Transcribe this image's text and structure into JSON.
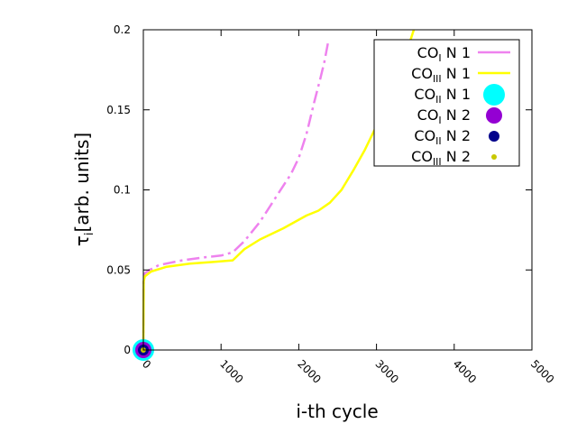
{
  "chart_data": {
    "type": "line",
    "title": "",
    "xlabel": "i-th cycle",
    "ylabel": {
      "main": "τ",
      "sub": "i",
      "rest": "[arb. units]"
    },
    "xlim": [
      0,
      5000
    ],
    "ylim": [
      0,
      0.2
    ],
    "x_ticks": [
      0,
      1000,
      2000,
      3000,
      4000,
      5000
    ],
    "x_tick_labels": [
      "0",
      "1000",
      "2000",
      "3000",
      "4000",
      "5000"
    ],
    "y_ticks": [
      0,
      0.05,
      0.1,
      0.15,
      0.2
    ],
    "y_tick_labels": [
      "0",
      "0.05",
      "0.1",
      "0.15",
      "0.2"
    ],
    "grid": false,
    "legend_position": "top-right",
    "colors": {
      "co_i_n1": "#ee82ee",
      "co_iii_n1": "#ffff00",
      "co_ii_n1": "#00ffff",
      "co_i_n2": "#9400d3",
      "co_ii_n2": "#00008b",
      "co_iii_n2": "#c8c800"
    },
    "series": [
      {
        "name": "CO_I N 1",
        "label_main": "CO",
        "label_sub": "I",
        "label_rest": " N 1",
        "style": "dashdot",
        "color_key": "co_i_n1",
        "points": [
          [
            0,
            0
          ],
          [
            5,
            0.045
          ],
          [
            20,
            0.048
          ],
          [
            80,
            0.05
          ],
          [
            200,
            0.053
          ],
          [
            500,
            0.056
          ],
          [
            800,
            0.058
          ],
          [
            1000,
            0.059
          ],
          [
            1150,
            0.061
          ],
          [
            1300,
            0.068
          ],
          [
            1500,
            0.08
          ],
          [
            1700,
            0.095
          ],
          [
            1900,
            0.11
          ],
          [
            2000,
            0.12
          ],
          [
            2100,
            0.135
          ],
          [
            2200,
            0.155
          ],
          [
            2280,
            0.17
          ],
          [
            2330,
            0.18
          ],
          [
            2380,
            0.193
          ]
        ]
      },
      {
        "name": "CO_III N 1",
        "label_main": "CO",
        "label_sub": "III",
        "label_rest": " N 1",
        "style": "solid",
        "color_key": "co_iii_n1",
        "points": [
          [
            0,
            0
          ],
          [
            5,
            0.043
          ],
          [
            20,
            0.046
          ],
          [
            100,
            0.049
          ],
          [
            300,
            0.052
          ],
          [
            600,
            0.054
          ],
          [
            900,
            0.055
          ],
          [
            1150,
            0.056
          ],
          [
            1300,
            0.063
          ],
          [
            1500,
            0.069
          ],
          [
            1800,
            0.076
          ],
          [
            2100,
            0.084
          ],
          [
            2250,
            0.087
          ],
          [
            2400,
            0.092
          ],
          [
            2550,
            0.1
          ],
          [
            2700,
            0.112
          ],
          [
            2850,
            0.125
          ],
          [
            3000,
            0.14
          ],
          [
            3150,
            0.155
          ],
          [
            3300,
            0.173
          ],
          [
            3400,
            0.188
          ],
          [
            3480,
            0.2
          ]
        ]
      },
      {
        "name": "CO_II N 1",
        "label_main": "CO",
        "label_sub": "II",
        "label_rest": " N 1",
        "style": "point",
        "color_key": "co_ii_n1",
        "marker_r": 12,
        "points": [
          [
            0,
            0
          ]
        ]
      },
      {
        "name": "CO_I N 2",
        "label_main": "CO",
        "label_sub": "I",
        "label_rest": " N 2",
        "style": "point",
        "color_key": "co_i_n2",
        "marker_r": 9,
        "points": [
          [
            0,
            0
          ]
        ]
      },
      {
        "name": "CO_II N 2",
        "label_main": "CO",
        "label_sub": "II",
        "label_rest": " N 2",
        "style": "point",
        "color_key": "co_ii_n2",
        "marker_r": 6,
        "points": [
          [
            0,
            0
          ]
        ]
      },
      {
        "name": "CO_III N 2",
        "label_main": "CO",
        "label_sub": "III",
        "label_rest": " N 2",
        "style": "point",
        "color_key": "co_iii_n2",
        "marker_r": 3,
        "points": [
          [
            0,
            0
          ]
        ]
      }
    ]
  }
}
